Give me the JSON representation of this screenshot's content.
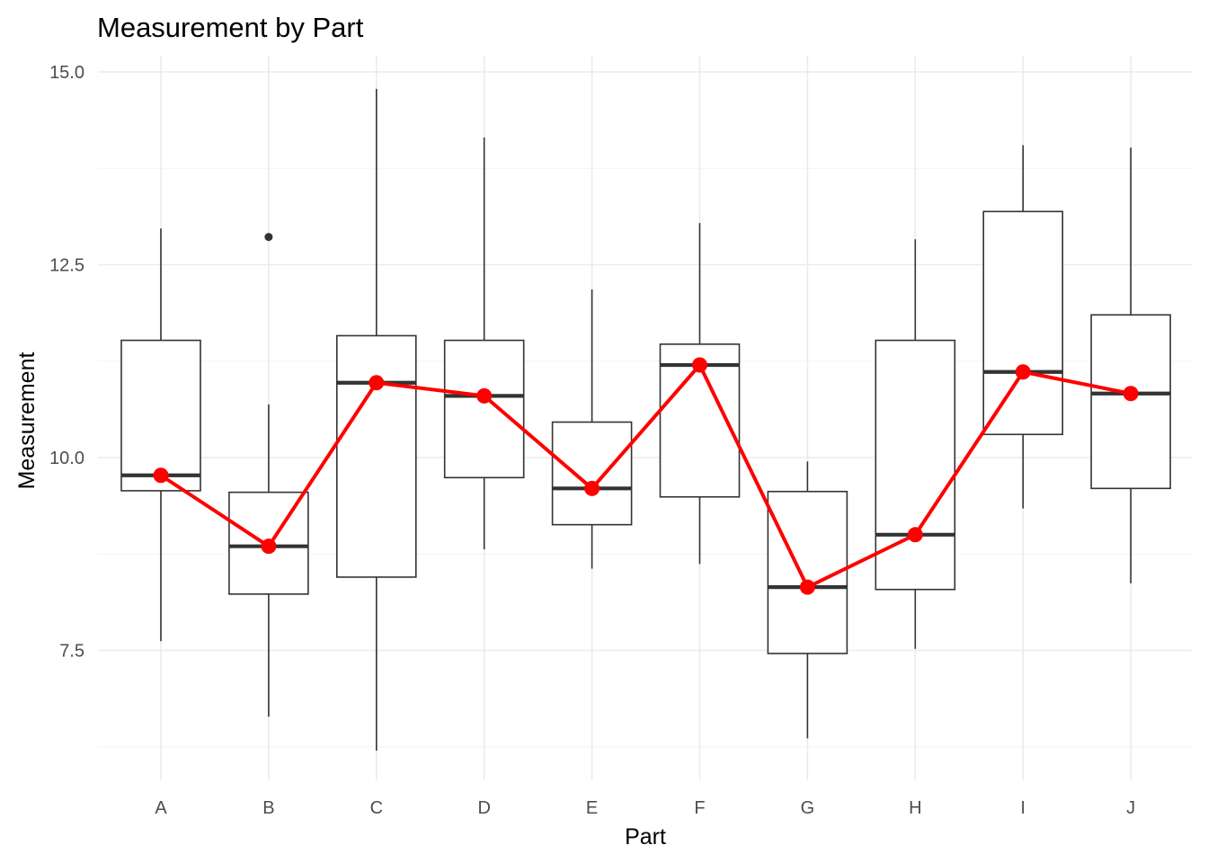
{
  "chart_data": {
    "type": "boxplot",
    "title": "Measurement by Part",
    "xlabel": "Part",
    "ylabel": "Measurement",
    "categories": [
      "A",
      "B",
      "C",
      "D",
      "E",
      "F",
      "G",
      "H",
      "I",
      "J"
    ],
    "ylim": [
      5.85,
      15.2
    ],
    "yticks": [
      7.5,
      10.0,
      12.5,
      15.0
    ],
    "ytick_labels": [
      "7.5",
      "10.0",
      "12.5",
      "15.0"
    ],
    "yminor": [
      6.25,
      8.75,
      11.25,
      13.75
    ],
    "grid": true,
    "boxes": [
      {
        "category": "A",
        "whisker_low": 7.62,
        "q1": 9.57,
        "median": 9.77,
        "q3": 11.52,
        "whisker_high": 12.97,
        "outliers": []
      },
      {
        "category": "B",
        "whisker_low": 6.64,
        "q1": 8.23,
        "median": 8.85,
        "q3": 9.55,
        "whisker_high": 10.69,
        "outliers": [
          12.86
        ]
      },
      {
        "category": "C",
        "whisker_low": 6.2,
        "q1": 8.45,
        "median": 10.97,
        "q3": 11.58,
        "whisker_high": 14.78,
        "outliers": []
      },
      {
        "category": "D",
        "whisker_low": 8.81,
        "q1": 9.74,
        "median": 10.8,
        "q3": 11.52,
        "whisker_high": 14.15,
        "outliers": []
      },
      {
        "category": "E",
        "whisker_low": 8.56,
        "q1": 9.13,
        "median": 9.6,
        "q3": 10.46,
        "whisker_high": 12.18,
        "outliers": []
      },
      {
        "category": "F",
        "whisker_low": 8.62,
        "q1": 9.49,
        "median": 11.2,
        "q3": 11.47,
        "whisker_high": 13.04,
        "outliers": []
      },
      {
        "category": "G",
        "whisker_low": 6.36,
        "q1": 7.46,
        "median": 8.32,
        "q3": 9.56,
        "whisker_high": 9.95,
        "outliers": []
      },
      {
        "category": "H",
        "whisker_low": 7.52,
        "q1": 8.29,
        "median": 9.0,
        "q3": 11.52,
        "whisker_high": 12.83,
        "outliers": []
      },
      {
        "category": "I",
        "whisker_low": 9.34,
        "q1": 10.3,
        "median": 11.11,
        "q3": 13.19,
        "whisker_high": 14.05,
        "outliers": []
      },
      {
        "category": "J",
        "whisker_low": 8.37,
        "q1": 9.6,
        "median": 10.83,
        "q3": 11.85,
        "whisker_high": 14.02,
        "outliers": []
      }
    ],
    "series": [
      {
        "values": [
          9.77,
          8.85,
          10.97,
          10.8,
          9.6,
          11.2,
          8.32,
          9.0,
          11.11,
          10.83
        ],
        "color": "#ff0000"
      }
    ]
  }
}
